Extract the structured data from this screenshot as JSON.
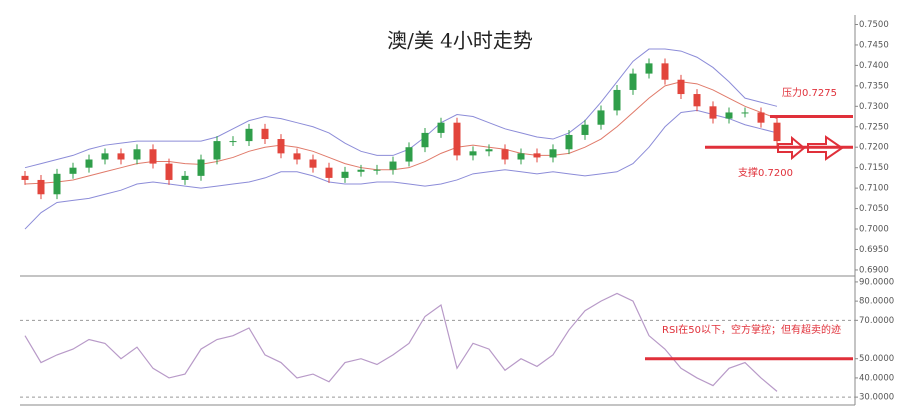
{
  "chart_data": [
    {
      "type": "candlestick",
      "title": "澳/美 4小时走势",
      "open": [
        0.713,
        0.712,
        0.7085,
        0.7135,
        0.715,
        0.717,
        0.7185,
        0.717,
        0.7195,
        0.716,
        0.712,
        0.713,
        0.717,
        0.7215,
        0.7215,
        0.7245,
        0.722,
        0.7185,
        0.717,
        0.715,
        0.7125,
        0.714,
        0.7145,
        0.7145,
        0.7165,
        0.72,
        0.7235,
        0.726,
        0.718,
        0.719,
        0.7195,
        0.717,
        0.7185,
        0.7175,
        0.7195,
        0.723,
        0.7255,
        0.729,
        0.734,
        0.738,
        0.7405,
        0.7365,
        0.733,
        0.73,
        0.727,
        0.7285,
        0.7285,
        0.726
      ],
      "high": [
        0.7142,
        0.7132,
        0.7147,
        0.7162,
        0.7182,
        0.7197,
        0.7197,
        0.7207,
        0.7207,
        0.7172,
        0.7142,
        0.7182,
        0.7227,
        0.7227,
        0.7257,
        0.7257,
        0.7232,
        0.7197,
        0.7182,
        0.7162,
        0.7152,
        0.7157,
        0.7157,
        0.7177,
        0.7212,
        0.7247,
        0.7272,
        0.7272,
        0.7202,
        0.7207,
        0.7207,
        0.7197,
        0.7197,
        0.7207,
        0.7242,
        0.7267,
        0.7302,
        0.7352,
        0.7392,
        0.7417,
        0.7417,
        0.7377,
        0.7342,
        0.7312,
        0.7297,
        0.7297,
        0.7297,
        0.7272
      ],
      "low": [
        0.7108,
        0.7073,
        0.7073,
        0.7123,
        0.7138,
        0.7158,
        0.7158,
        0.7158,
        0.7148,
        0.7108,
        0.7108,
        0.7118,
        0.7158,
        0.7203,
        0.7203,
        0.7208,
        0.7173,
        0.7158,
        0.7138,
        0.7113,
        0.7113,
        0.7128,
        0.7133,
        0.7133,
        0.7153,
        0.7188,
        0.7223,
        0.7168,
        0.7168,
        0.7178,
        0.7158,
        0.7158,
        0.7163,
        0.7163,
        0.7183,
        0.7218,
        0.7243,
        0.7278,
        0.7328,
        0.7368,
        0.7353,
        0.7318,
        0.7288,
        0.7258,
        0.7258,
        0.7273,
        0.7248,
        0.7203
      ],
      "close": [
        0.712,
        0.7085,
        0.7135,
        0.715,
        0.717,
        0.7185,
        0.717,
        0.7195,
        0.716,
        0.712,
        0.713,
        0.717,
        0.7215,
        0.7215,
        0.7245,
        0.722,
        0.7185,
        0.717,
        0.715,
        0.7125,
        0.714,
        0.7145,
        0.7145,
        0.7165,
        0.72,
        0.7235,
        0.726,
        0.718,
        0.719,
        0.7195,
        0.717,
        0.7185,
        0.7175,
        0.7195,
        0.723,
        0.7255,
        0.729,
        0.734,
        0.738,
        0.7405,
        0.7365,
        0.733,
        0.73,
        0.727,
        0.7285,
        0.7285,
        0.726,
        0.7215
      ],
      "up_color": "#2f9e4a",
      "down_color": "#e2453c",
      "bands": [
        {
          "color": "#8c8cd8",
          "values": [
            0.715,
            0.716,
            0.717,
            0.718,
            0.7195,
            0.7205,
            0.721,
            0.7215,
            0.7215,
            0.7215,
            0.7215,
            0.7215,
            0.7225,
            0.7245,
            0.7265,
            0.7275,
            0.727,
            0.726,
            0.725,
            0.7235,
            0.721,
            0.719,
            0.718,
            0.718,
            0.7195,
            0.7225,
            0.726,
            0.728,
            0.7275,
            0.726,
            0.7245,
            0.7235,
            0.7225,
            0.722,
            0.7235,
            0.7265,
            0.731,
            0.736,
            0.741,
            0.744,
            0.744,
            0.7435,
            0.742,
            0.7395,
            0.736,
            0.732,
            0.731,
            0.73
          ]
        },
        {
          "color": "#e07a6a",
          "values": [
            0.711,
            0.7112,
            0.7115,
            0.712,
            0.713,
            0.714,
            0.715,
            0.716,
            0.7165,
            0.7165,
            0.716,
            0.7158,
            0.7165,
            0.7175,
            0.719,
            0.72,
            0.7205,
            0.72,
            0.719,
            0.7175,
            0.716,
            0.715,
            0.7145,
            0.7145,
            0.715,
            0.7165,
            0.7185,
            0.72,
            0.7205,
            0.72,
            0.7195,
            0.7185,
            0.718,
            0.718,
            0.7185,
            0.72,
            0.722,
            0.725,
            0.7285,
            0.732,
            0.735,
            0.736,
            0.7355,
            0.734,
            0.732,
            0.73,
            0.7285,
            0.727
          ]
        },
        {
          "color": "#8c8cd8",
          "values": [
            0.7,
            0.704,
            0.7065,
            0.707,
            0.7075,
            0.7085,
            0.7095,
            0.711,
            0.7115,
            0.711,
            0.7105,
            0.71,
            0.7105,
            0.711,
            0.7115,
            0.7125,
            0.714,
            0.714,
            0.713,
            0.7115,
            0.711,
            0.711,
            0.7115,
            0.7115,
            0.711,
            0.7105,
            0.711,
            0.712,
            0.7135,
            0.714,
            0.7145,
            0.714,
            0.7135,
            0.714,
            0.7135,
            0.713,
            0.7135,
            0.714,
            0.716,
            0.72,
            0.725,
            0.7285,
            0.729,
            0.728,
            0.727,
            0.7255,
            0.7245,
            0.7235
          ]
        }
      ],
      "ylim": [
        0.6895,
        0.7511
      ],
      "yticks": [
        {
          "value": 0.69,
          "label": "0.6900"
        },
        {
          "value": 0.695,
          "label": "0.6950"
        },
        {
          "value": 0.7,
          "label": "0.7000"
        },
        {
          "value": 0.705,
          "label": "0.7050"
        },
        {
          "value": 0.71,
          "label": "0.7100"
        },
        {
          "value": 0.715,
          "label": "0.7150"
        },
        {
          "value": 0.72,
          "label": "0.7200"
        },
        {
          "value": 0.725,
          "label": "0.7250"
        },
        {
          "value": 0.73,
          "label": "0.7300"
        },
        {
          "value": 0.735,
          "label": "0.7350"
        },
        {
          "value": 0.74,
          "label": "0.7400"
        },
        {
          "value": 0.745,
          "label": "0.7450"
        },
        {
          "value": 0.75,
          "label": "0.7500"
        }
      ],
      "hlines": [
        {
          "value": 0.7275,
          "label": "压力0.7275",
          "color": "#e0303a"
        },
        {
          "value": 0.72,
          "label": "支撑0.7200",
          "color": "#e0303a"
        }
      ]
    },
    {
      "type": "line",
      "color": "#b89ac8",
      "values": [
        62,
        48,
        52,
        55,
        60,
        58,
        50,
        56,
        45,
        40,
        42,
        55,
        60,
        62,
        66,
        52,
        48,
        40,
        42,
        38,
        48,
        50,
        47,
        52,
        58,
        72,
        78,
        45,
        58,
        55,
        44,
        50,
        46,
        52,
        65,
        75,
        80,
        84,
        80,
        62,
        55,
        45,
        40,
        36,
        45,
        48,
        40,
        33
      ],
      "ylim": [
        28.5,
        91
      ],
      "yticks": [
        {
          "value": 30,
          "label": "30.0000"
        },
        {
          "value": 40,
          "label": "40.0000"
        },
        {
          "value": 50,
          "label": "50.0000"
        },
        {
          "value": 70,
          "label": "70.0000"
        },
        {
          "value": 80,
          "label": "80.0000"
        },
        {
          "value": 90,
          "label": "90.0000"
        }
      ],
      "levels": [
        70,
        30
      ],
      "hlines": [
        {
          "value": 50,
          "label": "RSI在50以下，空方掌控；但有超卖的迹",
          "color": "#e0303a"
        }
      ]
    }
  ]
}
